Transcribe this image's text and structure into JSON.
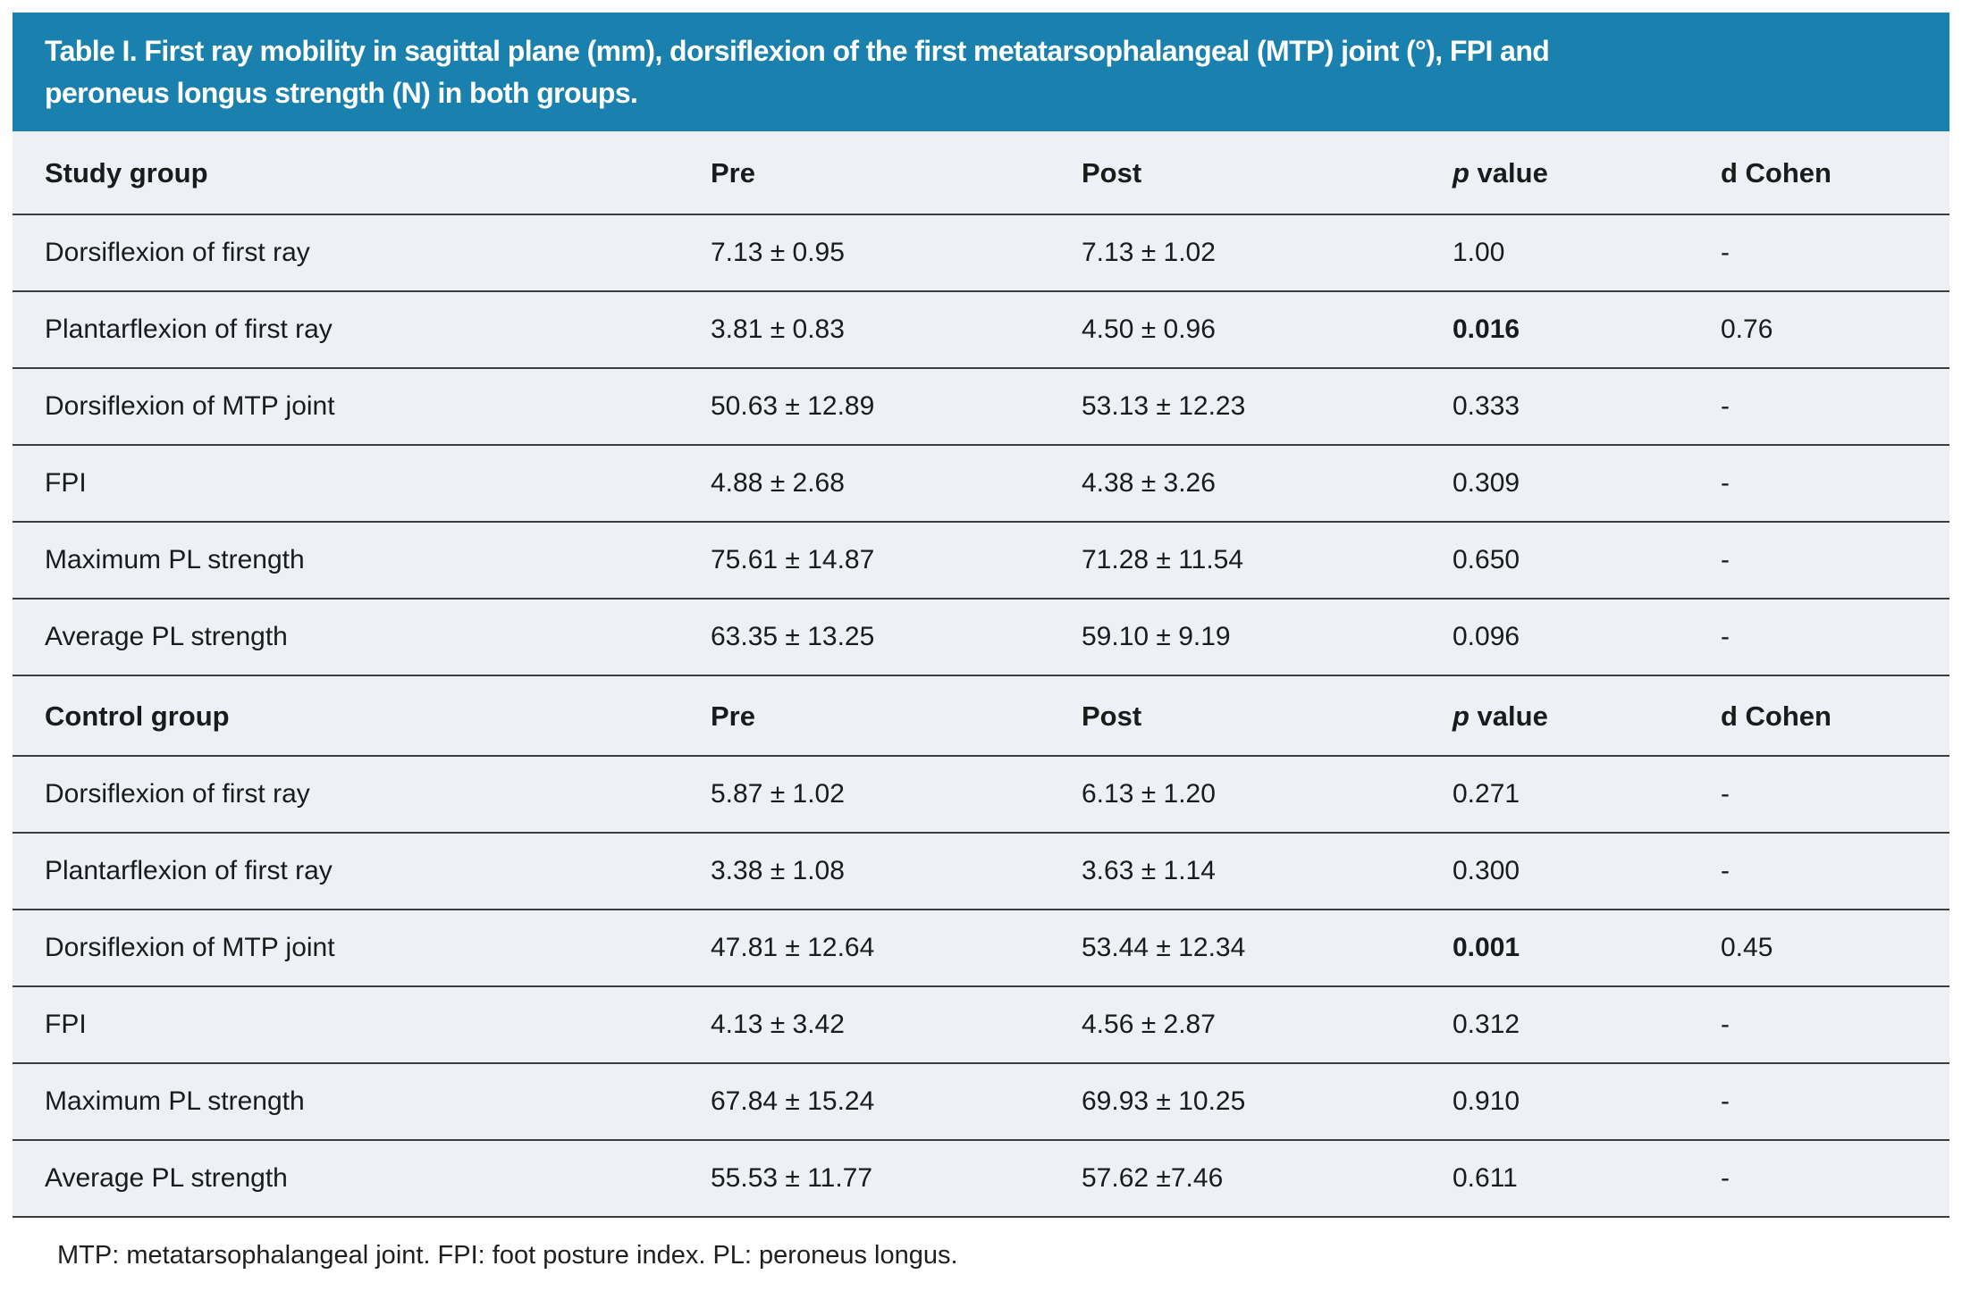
{
  "title_lines": [
    "Table I. First ray mobility in sagittal plane (mm), dorsiflexion of the first metatarsophalangeal (MTP) joint (°), FPI and",
    "peroneus longus strength (N) in both groups."
  ],
  "columns": {
    "pre": "Pre",
    "post": "Post",
    "p_italic": "p",
    "p_rest": " value",
    "d": "d Cohen"
  },
  "colors": {
    "header_bg": "#1a80ae",
    "row_bg": "#edf1f6",
    "divider": "#3d3d3d",
    "title_text": "#ffffff",
    "body_text": "#1b1b1b"
  },
  "sections": [
    {
      "group_label": "Study group",
      "rows": [
        {
          "label": "Dorsiflexion of first ray",
          "pre": "7.13 ± 0.95",
          "post": "7.13 ± 1.02",
          "p": "1.00",
          "p_strong": false,
          "d": "-"
        },
        {
          "label": "Plantarflexion of first ray",
          "pre": "3.81 ± 0.83",
          "post": "4.50 ± 0.96",
          "p": "0.016",
          "p_strong": true,
          "d": "0.76"
        },
        {
          "label": "Dorsiflexion of MTP joint",
          "pre": "50.63 ± 12.89",
          "post": "53.13 ± 12.23",
          "p": "0.333",
          "p_strong": false,
          "d": "-"
        },
        {
          "label": "FPI",
          "pre": "4.88 ± 2.68",
          "post": "4.38 ± 3.26",
          "p": "0.309",
          "p_strong": false,
          "d": "-"
        },
        {
          "label": "Maximum PL strength",
          "pre": "75.61 ± 14.87",
          "post": "71.28 ± 11.54",
          "p": "0.650",
          "p_strong": false,
          "d": "-"
        },
        {
          "label": "Average PL strength",
          "pre": "63.35 ± 13.25",
          "post": "59.10 ± 9.19",
          "p": "0.096",
          "p_strong": false,
          "d": "-"
        }
      ]
    },
    {
      "group_label": "Control group",
      "rows": [
        {
          "label": "Dorsiflexion of first ray",
          "pre": "5.87 ± 1.02",
          "post": "6.13 ± 1.20",
          "p": "0.271",
          "p_strong": false,
          "d": "-"
        },
        {
          "label": "Plantarflexion of first ray",
          "pre": "3.38 ± 1.08",
          "post": "3.63 ± 1.14",
          "p": "0.300",
          "p_strong": false,
          "d": "-"
        },
        {
          "label": "Dorsiflexion of MTP joint",
          "pre": "47.81 ± 12.64",
          "post": "53.44 ± 12.34",
          "p": "0.001",
          "p_strong": true,
          "d": "0.45"
        },
        {
          "label": "FPI",
          "pre": "4.13 ± 3.42",
          "post": "4.56 ± 2.87",
          "p": "0.312",
          "p_strong": false,
          "d": "-"
        },
        {
          "label": "Maximum PL strength",
          "pre": "67.84 ± 15.24",
          "post": "69.93 ± 10.25",
          "p": "0.910",
          "p_strong": false,
          "d": "-"
        },
        {
          "label": "Average PL strength",
          "pre": "55.53 ± 11.77",
          "post": "57.62 ±7.46",
          "p": "0.611",
          "p_strong": false,
          "d": "-"
        }
      ]
    }
  ],
  "footnote": "MTP: metatarsophalangeal joint. FPI: foot posture index. PL: peroneus longus."
}
